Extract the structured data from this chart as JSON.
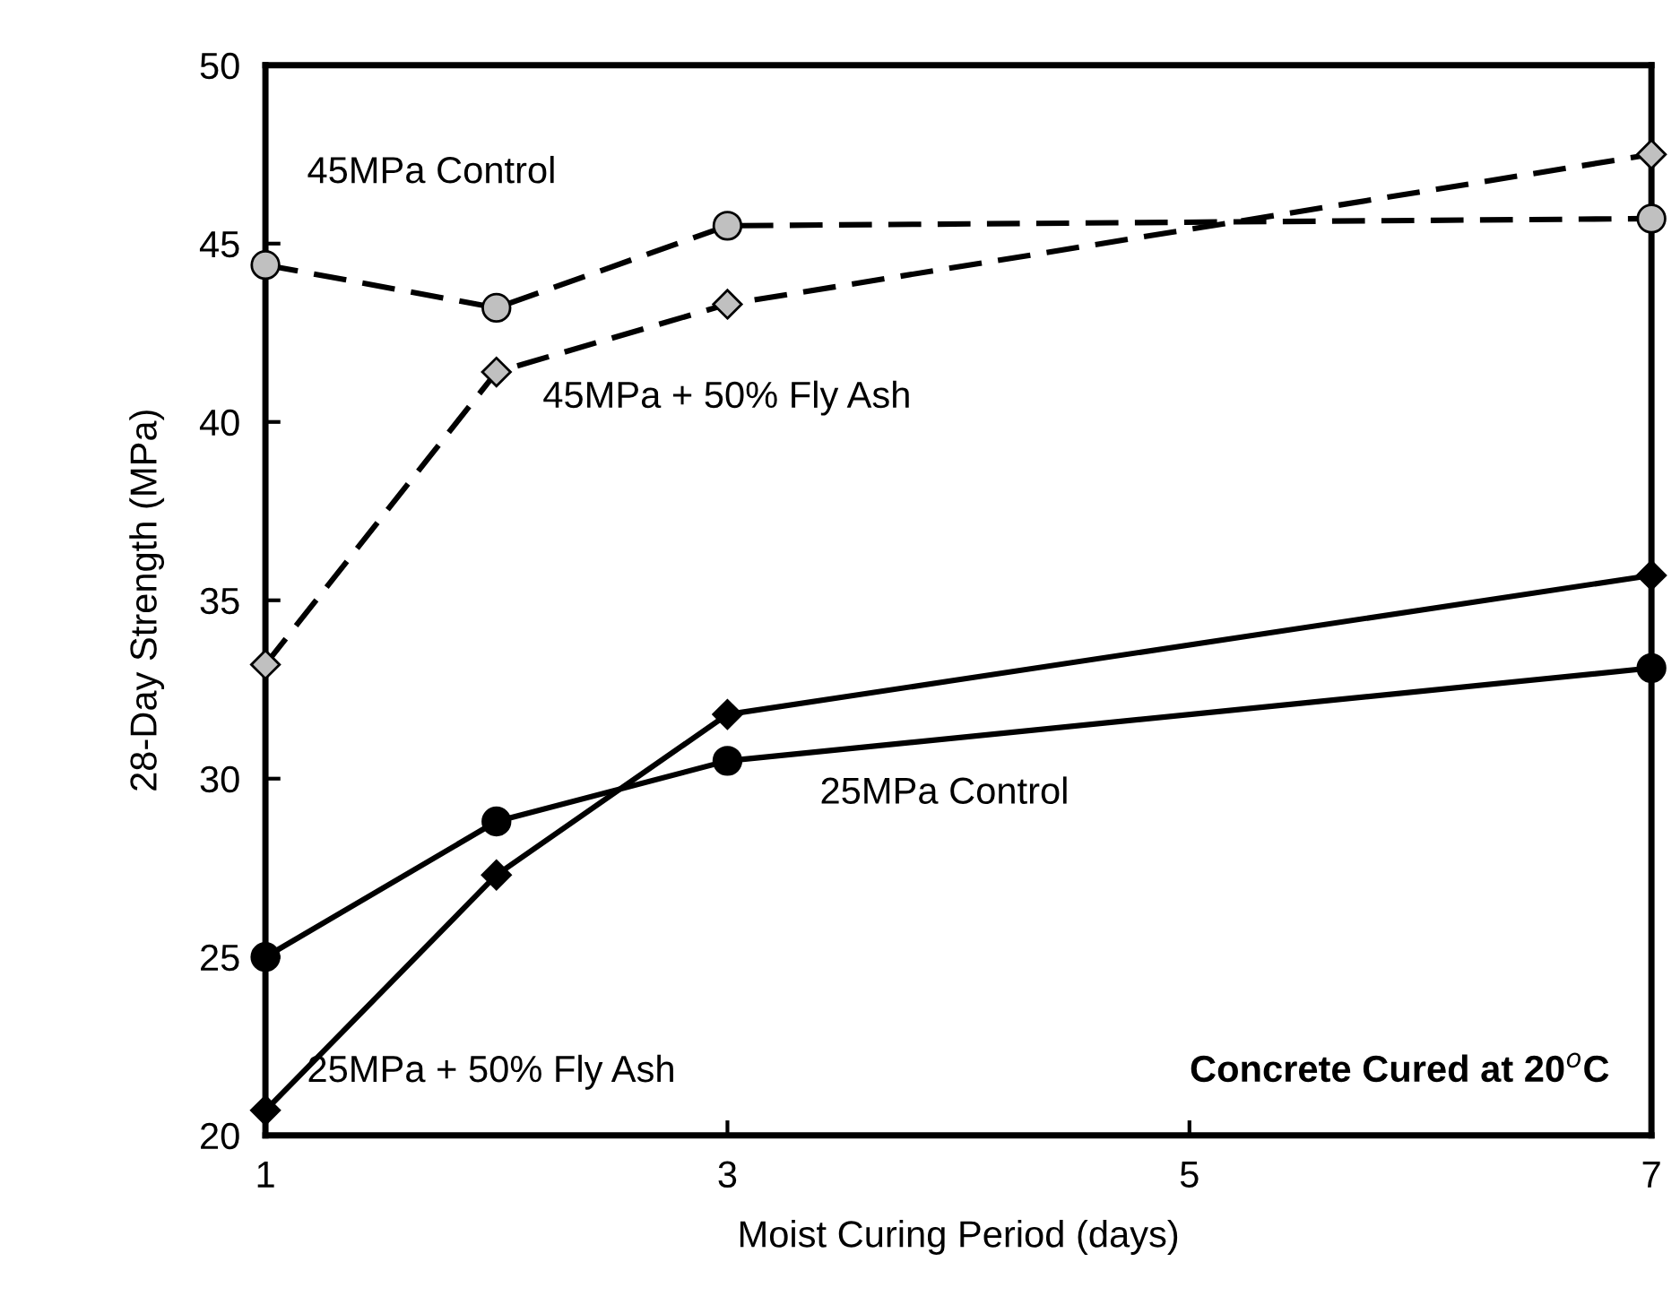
{
  "chart_data": {
    "type": "line",
    "xlabel": "Moist Curing Period (days)",
    "ylabel": "28-Day Strength (MPa)",
    "x": [
      1,
      2,
      3,
      7
    ],
    "series": [
      {
        "name": "45MPa Control",
        "color": "#c0c0c0",
        "values": [
          44.4,
          43.2,
          45.5,
          45.7
        ],
        "marker": "circle",
        "line_style": "dashed"
      },
      {
        "name": "45MPa + 50% Fly Ash",
        "color": "#c0c0c0",
        "values": [
          33.2,
          41.4,
          43.3,
          47.5
        ],
        "marker": "diamond",
        "line_style": "dashed"
      },
      {
        "name": "25MPa Control",
        "color": "#000000",
        "values": [
          25.0,
          28.8,
          30.5,
          33.1
        ],
        "marker": "circle",
        "line_style": "solid"
      },
      {
        "name": "25MPa + 50% Fly Ash",
        "color": "#000000",
        "values": [
          20.7,
          27.3,
          31.8,
          35.7
        ],
        "marker": "diamond",
        "line_style": "solid"
      }
    ],
    "annotations": [
      "Concrete Cured at 20$^{o}$C"
    ],
    "xlim": [
      1,
      7
    ],
    "xticks": [
      1,
      3,
      5,
      7
    ],
    "ylim": [
      20,
      50
    ],
    "yticks": [
      20,
      25,
      30,
      35,
      40,
      45,
      50
    ],
    "grid": false,
    "legend": false
  }
}
